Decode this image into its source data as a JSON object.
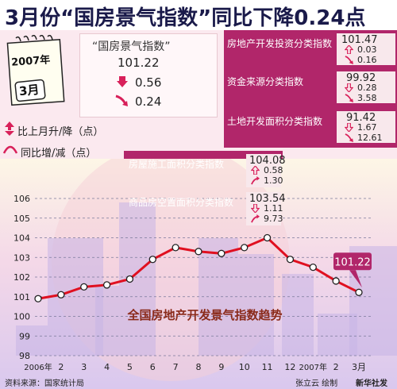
{
  "headline": "3月份“国房景气指数”同比下降0.24点",
  "calendar": {
    "year": "2007年",
    "month": "3月"
  },
  "main_index": {
    "title": "“国房景气指数”",
    "value": "101.22",
    "mom_change": "0.56",
    "yoy_change": "0.24"
  },
  "legend": {
    "mom_label": "比上月升/降（点）",
    "yoy_label": "同比增/减（点）"
  },
  "sub_indices": [
    {
      "name": "房地产开发投资分类指数",
      "value": "101.47",
      "mom": "0.03",
      "yoy": "0.16",
      "mom_dir": "up",
      "yoy_dir": "down"
    },
    {
      "name": "资金来源分类指数",
      "value": "99.92",
      "mom": "0.28",
      "yoy": "3.58",
      "mom_dir": "down",
      "yoy_dir": "down"
    },
    {
      "name": "土地开发面积分类指数",
      "value": "91.42",
      "mom": "1.67",
      "yoy": "12.61",
      "mom_dir": "down",
      "yoy_dir": "down"
    },
    {
      "name": "房屋施工面积分类指数",
      "value": "104.08",
      "mom": "0.58",
      "yoy": "1.30",
      "mom_dir": "up",
      "yoy_dir": "up"
    },
    {
      "name": "商品房空置面积分类指数",
      "value": "103.54",
      "mom": "1.11",
      "yoy": "9.73",
      "mom_dir": "down",
      "yoy_dir": "up"
    }
  ],
  "footer": {
    "source": "资料来源：国家统计局",
    "author": "张立云 绘制",
    "agency": "新华社发"
  },
  "colors": {
    "line": "#e01020",
    "panel": "#b1266a",
    "accent_down": "#d8205a"
  },
  "chart_data": {
    "type": "line",
    "title": "全国房地产开发景气指数趋势",
    "categories": [
      "2006年",
      "2",
      "3",
      "4",
      "5",
      "6",
      "7",
      "8",
      "9",
      "10",
      "11",
      "12",
      "2007年",
      "2",
      "3月"
    ],
    "values": [
      100.9,
      101.1,
      101.5,
      101.6,
      101.9,
      102.9,
      103.5,
      103.3,
      103.2,
      103.5,
      104.0,
      102.9,
      102.5,
      101.8,
      101.22
    ],
    "ylim": [
      98,
      106
    ],
    "yticks": [
      98,
      99,
      100,
      101,
      102,
      103,
      104,
      105,
      106
    ],
    "last_label": "101.22",
    "xlabel": "",
    "ylabel": ""
  }
}
